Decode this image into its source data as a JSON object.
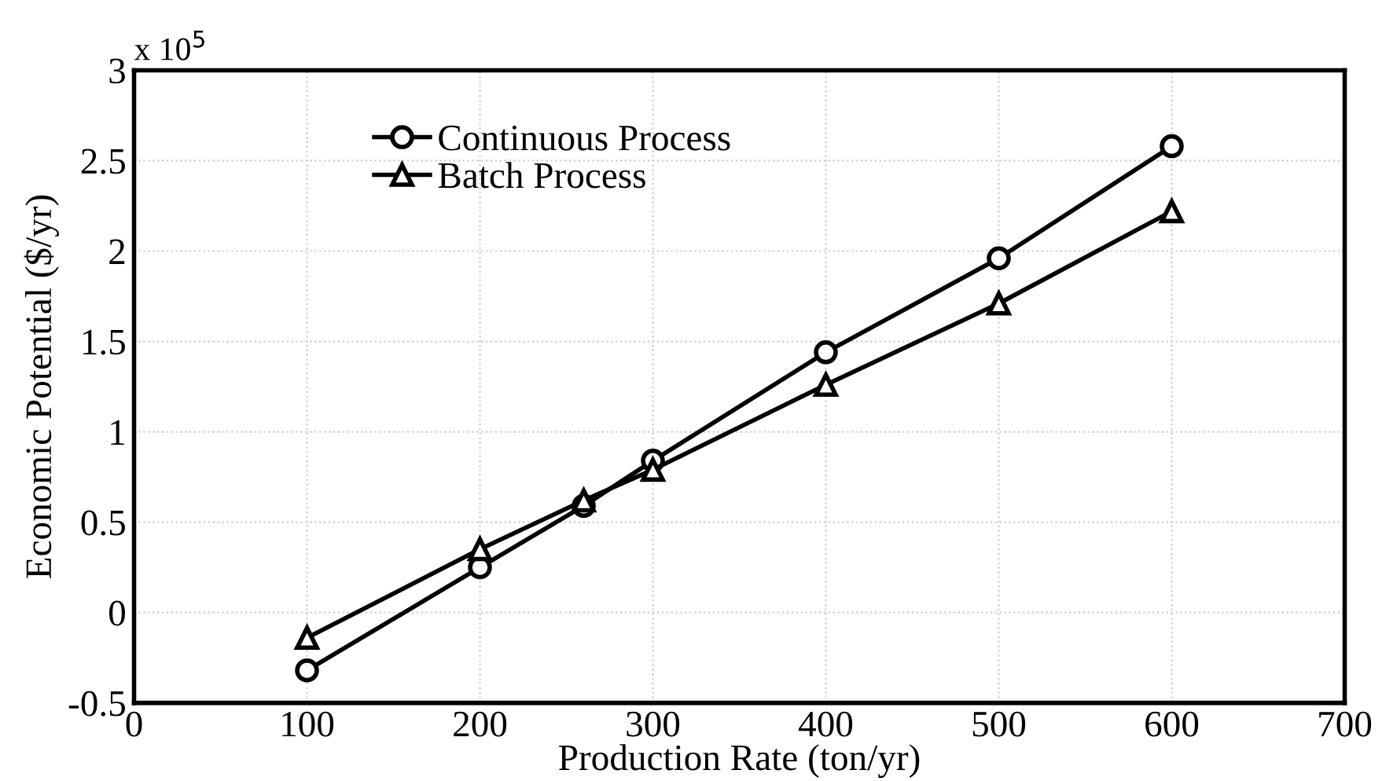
{
  "chart_data": {
    "type": "line",
    "xlabel": "Production Rate (ton/yr)",
    "ylabel": "Economic Potential ($/yr)",
    "x": [
      100,
      200,
      260,
      300,
      400,
      500,
      600
    ],
    "series": [
      {
        "name": "Continuous Process",
        "color": "#000000",
        "marker": "circle",
        "values": [
          -0.32,
          0.25,
          0.59,
          0.84,
          1.44,
          1.96,
          2.58
        ]
      },
      {
        "name": "Batch Process",
        "color": "#000000",
        "marker": "triangle",
        "values": [
          -0.14,
          0.35,
          0.62,
          0.79,
          1.26,
          1.71,
          2.22
        ]
      }
    ],
    "xlim": [
      0,
      700
    ],
    "xticks": [
      0,
      100,
      200,
      300,
      400,
      500,
      600,
      700
    ],
    "ylim": [
      -0.5,
      3
    ],
    "yticks": [
      -0.5,
      0,
      0.5,
      1,
      1.5,
      2,
      2.5,
      3
    ],
    "annotations": [
      "x 10$^{5}$"
    ],
    "grid": true,
    "legend": "top left",
    "line_style": "solid"
  }
}
